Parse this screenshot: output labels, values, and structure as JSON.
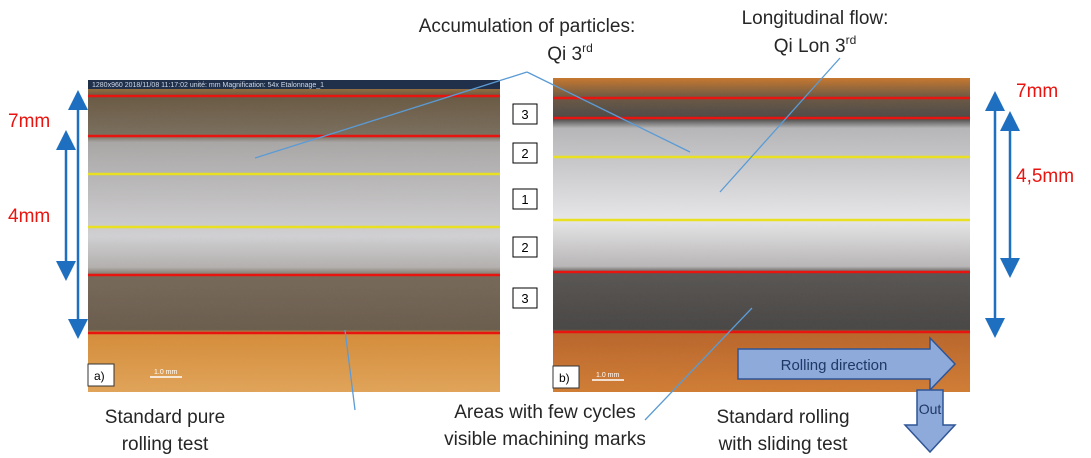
{
  "annotations": {
    "accumulation": {
      "line1": "Accumulation of particles:",
      "line2": "Qi 3",
      "sup": "rd"
    },
    "longitudinal": {
      "line1": "Longitudinal flow:",
      "line2": "Qi Lon 3",
      "sup": "rd"
    },
    "few_cycles": {
      "line1": "Areas with few cycles",
      "line2": "visible machining marks"
    }
  },
  "panel_a": {
    "label": "a)",
    "info_bar": "1280x960  2018/11/08 11:17:02  unité: mm  Magnification: 54x  Etalonnage_1",
    "scale_bar": "1.0 mm",
    "outer_width": "7mm",
    "inner_width": "4mm",
    "caption": {
      "line1": "Standard pure",
      "line2": "rolling test"
    }
  },
  "panel_b": {
    "label": "b)",
    "scale_bar": "1.0 mm",
    "outer_width": "7mm",
    "inner_width": "4,5mm",
    "rolling_direction": "Rolling direction",
    "out": "Out",
    "caption": {
      "line1": "Standard rolling",
      "line2": "with sliding test"
    }
  },
  "zones": [
    "3",
    "2",
    "1",
    "2",
    "3"
  ]
}
